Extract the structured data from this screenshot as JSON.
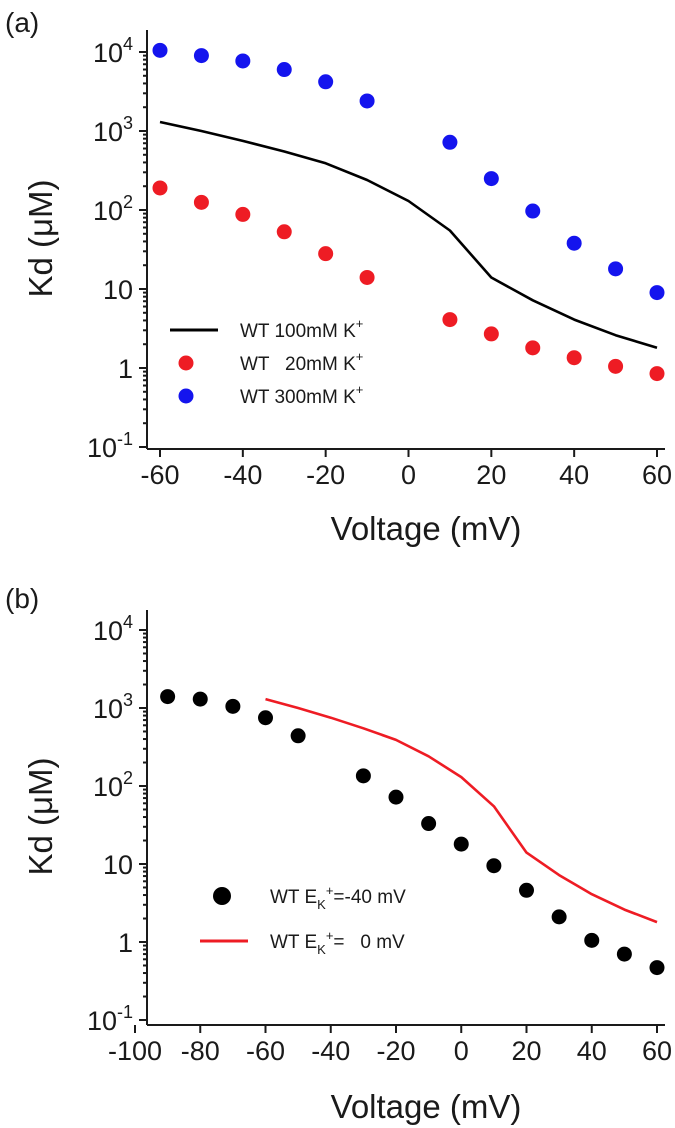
{
  "figure": {
    "panels": [
      {
        "label": "(a)"
      },
      {
        "label": "(b)"
      }
    ]
  },
  "chart_data": [
    {
      "type": "scatter",
      "panel": "(a)",
      "xlabel": "Voltage (mV)",
      "ylabel": "Kd (μM)",
      "xlim": [
        -65,
        62
      ],
      "ylim": [
        0.1,
        10000
      ],
      "yscale": "log",
      "xticks": [
        -60,
        -40,
        -20,
        0,
        20,
        40,
        60
      ],
      "xtick_labels": [
        "-60",
        "-40",
        "-20",
        "0",
        "20",
        "40",
        "60"
      ],
      "yticks": [
        0.1,
        1,
        10,
        100,
        1000,
        10000
      ],
      "ytick_labels": [
        {
          "base": "10",
          "exp": "-1"
        },
        {
          "base": "1",
          "exp": ""
        },
        {
          "base": "10",
          "exp": ""
        },
        {
          "base": "10",
          "exp": "2"
        },
        {
          "base": "10",
          "exp": "3"
        },
        {
          "base": "10",
          "exp": "4"
        }
      ],
      "grid": false,
      "legend_position": "bottom-left",
      "series": [
        {
          "name": "WT 100mM K+",
          "legend": {
            "main": "WT 100mM K",
            "sup": "+"
          },
          "style": "line",
          "color": "#000000",
          "x": [
            -60,
            -50,
            -40,
            -30,
            -20,
            -10,
            0,
            10,
            20,
            30,
            40,
            50,
            60
          ],
          "y": [
            1300,
            1000,
            750,
            550,
            390,
            240,
            130,
            55,
            14,
            7.2,
            4.1,
            2.6,
            1.8
          ]
        },
        {
          "name": "WT   20mM K+",
          "legend": {
            "main": "WT   20mM K",
            "sup": "+"
          },
          "style": "marker",
          "color": "#ee1c24",
          "x": [
            -60,
            -50,
            -40,
            -30,
            -20,
            -10,
            10,
            20,
            30,
            40,
            50,
            60
          ],
          "y": [
            190,
            125,
            88,
            53,
            28,
            14,
            4.1,
            2.7,
            1.8,
            1.35,
            1.05,
            0.85
          ]
        },
        {
          "name": "WT 300mM K+",
          "legend": {
            "main": "WT 300mM K",
            "sup": "+"
          },
          "style": "marker",
          "color": "#1414ee",
          "x": [
            -60,
            -50,
            -40,
            -30,
            -20,
            -10,
            10,
            20,
            30,
            40,
            50,
            60
          ],
          "y": [
            10500,
            9000,
            7700,
            6000,
            4200,
            2400,
            720,
            250,
            97,
            38,
            18,
            9
          ]
        }
      ]
    },
    {
      "type": "scatter",
      "panel": "(b)",
      "xlabel": "Voltage (mV)",
      "ylabel": "Kd (μM)",
      "xlim": [
        -100,
        62
      ],
      "ylim": [
        0.1,
        10000
      ],
      "yscale": "log",
      "xticks": [
        -100,
        -80,
        -60,
        -40,
        -20,
        0,
        20,
        40,
        60
      ],
      "xtick_labels": [
        "-100",
        "-80",
        "-60",
        "-40",
        "-20",
        "0",
        "20",
        "40",
        "60"
      ],
      "yticks": [
        0.1,
        1,
        10,
        100,
        1000,
        10000
      ],
      "ytick_labels": [
        {
          "base": "10",
          "exp": "-1"
        },
        {
          "base": "1",
          "exp": ""
        },
        {
          "base": "10",
          "exp": ""
        },
        {
          "base": "10",
          "exp": "2"
        },
        {
          "base": "10",
          "exp": "3"
        },
        {
          "base": "10",
          "exp": "4"
        }
      ],
      "grid": false,
      "legend_position": "bottom-left",
      "series": [
        {
          "name": "WT EK+=-40 mV",
          "legend": {
            "main": "WT E",
            "sub": "K",
            "sup": "+",
            "tail": "=-40 mV"
          },
          "style": "marker",
          "color": "#000000",
          "x": [
            -90,
            -80,
            -70,
            -60,
            -50,
            -30,
            -20,
            -10,
            0,
            10,
            20,
            30,
            40,
            50,
            60
          ],
          "y": [
            1400,
            1300,
            1050,
            750,
            440,
            135,
            72,
            33,
            18,
            9.5,
            4.6,
            2.1,
            1.05,
            0.7,
            0.47
          ]
        },
        {
          "name": "WT EK+=   0 mV",
          "legend": {
            "main": "WT E",
            "sub": "K",
            "sup": "+",
            "tail": "=   0 mV"
          },
          "style": "line",
          "color": "#ee1c24",
          "x": [
            -60,
            -50,
            -40,
            -30,
            -20,
            -10,
            0,
            10,
            20,
            30,
            40,
            50,
            60
          ],
          "y": [
            1300,
            1000,
            750,
            550,
            390,
            240,
            130,
            55,
            14,
            7.2,
            4.1,
            2.6,
            1.8
          ]
        }
      ]
    }
  ]
}
